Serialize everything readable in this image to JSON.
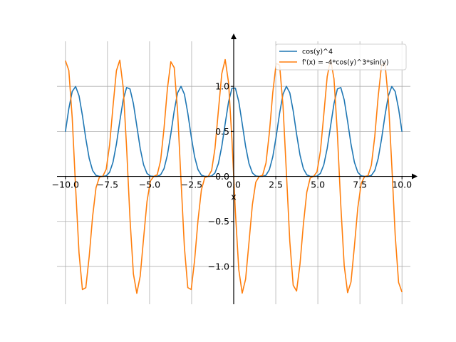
{
  "chart_data": {
    "type": "line",
    "title": "",
    "xlabel": "x",
    "ylabel": "",
    "xlim": [
      -10.5,
      10.5
    ],
    "ylim": [
      -1.42,
      1.5
    ],
    "grid": true,
    "legend_placement": "top-right",
    "x_ticks": [
      {
        "value": -10.0,
        "label": "−10.0"
      },
      {
        "value": -7.5,
        "label": "−7.5"
      },
      {
        "value": -5.0,
        "label": "−5.0"
      },
      {
        "value": -2.5,
        "label": "−2.5"
      },
      {
        "value": 0.0,
        "label": "0.0"
      },
      {
        "value": 2.5,
        "label": "2.5"
      },
      {
        "value": 5.0,
        "label": "5.0"
      },
      {
        "value": 7.5,
        "label": "7.5"
      },
      {
        "value": 10.0,
        "label": "10.0"
      }
    ],
    "y_ticks": [
      {
        "value": -1.0,
        "label": "−1.0"
      },
      {
        "value": -0.5,
        "label": "−0.5"
      },
      {
        "value": 0.0,
        "label": "0.0"
      },
      {
        "value": 0.5,
        "label": "0.5"
      },
      {
        "value": 1.0,
        "label": "1.0"
      }
    ],
    "x_range": [
      -10,
      10
    ],
    "num_samples": 100,
    "series": [
      {
        "name": "cos(y)^4",
        "color": "#1f77b4",
        "expression": "cos(x)^4"
      },
      {
        "name": "f'(x) = -4*cos(y)^3*sin(y)",
        "color": "#ff7f0e",
        "expression": "-4*cos(x)^3*sin(x)"
      }
    ]
  }
}
